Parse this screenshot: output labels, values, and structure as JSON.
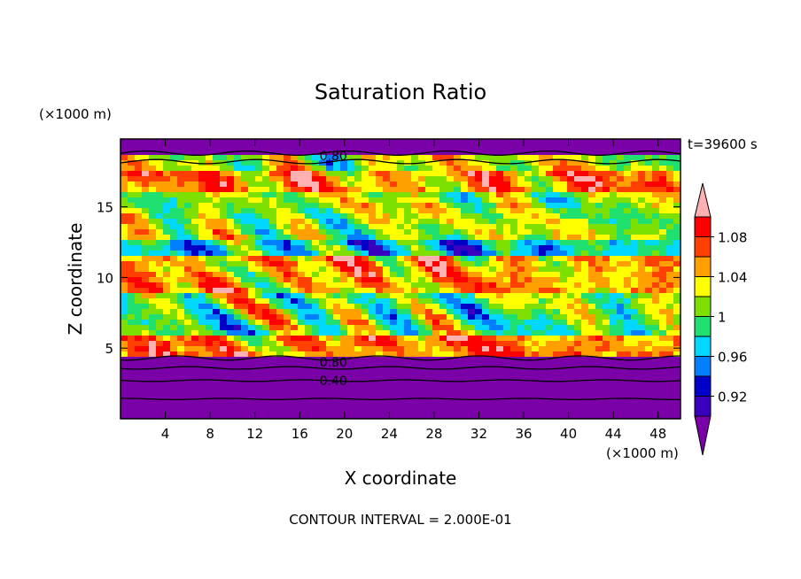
{
  "chart_data": {
    "type": "heatmap",
    "title": "Saturation Ratio",
    "time_label": "t=39600 s",
    "xlabel": "X coordinate",
    "ylabel": "Z coordinate",
    "x_unit": "(×1000 m)",
    "y_unit": "(×1000 m)",
    "xlim": [
      0,
      50
    ],
    "ylim": [
      0,
      19.8
    ],
    "x_ticks": [
      4,
      8,
      12,
      16,
      20,
      24,
      28,
      32,
      36,
      40,
      44,
      48
    ],
    "y_ticks": [
      5,
      10,
      15
    ],
    "colorbar": {
      "levels": [
        0.9,
        0.92,
        0.94,
        0.96,
        0.98,
        1.0,
        1.02,
        1.04,
        1.06,
        1.08,
        1.1
      ],
      "tick_labels": [
        "0.92",
        "0.96",
        "1",
        "1.04",
        "1.08"
      ],
      "tick_values": [
        0.92,
        0.96,
        1.0,
        1.04,
        1.08
      ],
      "colors": [
        "#7a00a8",
        "#3a00c0",
        "#0000c8",
        "#0080ff",
        "#00d8ff",
        "#20e070",
        "#7ee000",
        "#ffff00",
        "#ffa000",
        "#ff4000",
        "#ff0000",
        "#ffb0b0"
      ]
    },
    "contour_labels": [
      {
        "text": "0.80",
        "x": 19,
        "z": 18.6
      },
      {
        "text": "0.80",
        "x": 19,
        "z": 4.0
      },
      {
        "text": "0.40",
        "x": 19,
        "z": 2.7
      }
    ],
    "bands": [
      {
        "z": [
          18.6,
          19.8
        ],
        "value": "<0.90"
      },
      {
        "z": [
          17.6,
          18.6
        ],
        "value": "0.98-1.04 mixed"
      },
      {
        "z": [
          16.2,
          17.6
        ],
        "value": "1.04-1.10 mixed"
      },
      {
        "z": [
          12.5,
          16.2
        ],
        "value": "0.96-1.04 mixed"
      },
      {
        "z": [
          11.5,
          12.5
        ],
        "value": "0.92-0.98 patches"
      },
      {
        "z": [
          9.0,
          11.5
        ],
        "value": "1.02-1.10 mixed"
      },
      {
        "z": [
          6.0,
          9.0
        ],
        "value": "0.96-1.04 mixed"
      },
      {
        "z": [
          4.5,
          6.0
        ],
        "value": "1.04-1.10 mixed"
      },
      {
        "z": [
          0,
          4.5
        ],
        "value": "<0.90"
      }
    ]
  },
  "footer": {
    "contour_interval": "CONTOUR INTERVAL = 2.000E-01"
  }
}
